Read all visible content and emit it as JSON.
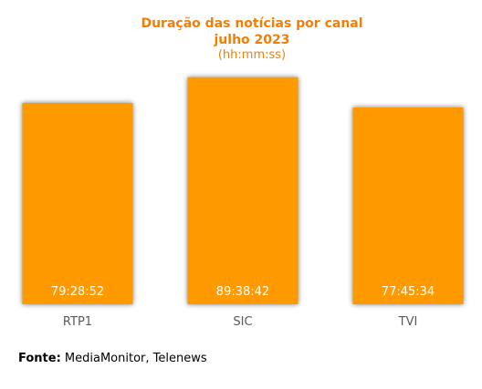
{
  "chart_data": {
    "type": "bar",
    "title": "Duração das notícias por canal",
    "subtitle": "julho 2023",
    "unit_label": "(hh:mm:ss)",
    "categories": [
      "RTP1",
      "SIC",
      "TVI"
    ],
    "values": [
      79.4811,
      89.645,
      77.7594
    ],
    "value_labels": [
      "79:28:52",
      "89:38:42",
      "77:45:34"
    ],
    "ylim": [
      0,
      100
    ],
    "grid": false,
    "legend": "none",
    "bar_color": "#ff9900",
    "title_color": "#f07f09"
  },
  "source": {
    "label": "Fonte:",
    "text": "MediaMonitor, Telenews"
  }
}
